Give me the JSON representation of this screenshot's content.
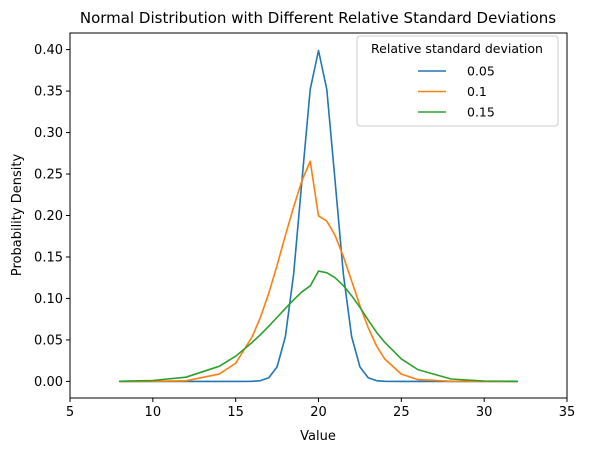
{
  "chart_data": {
    "type": "line",
    "title": "Normal Distribution with Different Relative Standard Deviations",
    "xlabel": "Value",
    "ylabel": "Probability Density",
    "xlim": [
      5,
      35
    ],
    "ylim": [
      -0.02,
      0.42
    ],
    "xticks": [
      "5",
      "10",
      "15",
      "20",
      "25",
      "30",
      "35"
    ],
    "yticks": [
      "0.00",
      "0.05",
      "0.10",
      "0.15",
      "0.20",
      "0.25",
      "0.30",
      "0.35",
      "0.40"
    ],
    "grid": false,
    "legend": {
      "title": "Relative standard deviation",
      "placement": "top-right"
    },
    "x": [
      8,
      10,
      12,
      14,
      15,
      16,
      16.5,
      17,
      17.5,
      18,
      18.5,
      19,
      19.5,
      20,
      20.5,
      21,
      21.5,
      22,
      22.5,
      23,
      23.5,
      24,
      25,
      26,
      28,
      30,
      32
    ],
    "series": [
      {
        "name": "0.05",
        "color": "#1f77b4",
        "values": [
          0,
          0,
          0,
          0,
          0,
          0.0001,
          0.0009,
          0.0044,
          0.0175,
          0.054,
          0.1295,
          0.242,
          0.3521,
          0.3989,
          0.3521,
          0.242,
          0.1295,
          0.054,
          0.0175,
          0.0044,
          0.0009,
          0.0001,
          0,
          0,
          0,
          0,
          0
        ]
      },
      {
        "name": "0.1",
        "color": "#ff7f0e",
        "values": [
          0,
          0.0001,
          0.0007,
          0.0089,
          0.0219,
          0.054,
          0.0775,
          0.1065,
          0.1399,
          0.176,
          0.2104,
          0.242,
          0.2654,
          0.1995,
          0.1933,
          0.176,
          0.1506,
          0.121,
          0.0913,
          0.0648,
          0.043,
          0.027,
          0.0088,
          0.0022,
          0.0001,
          0,
          0
        ]
      },
      {
        "name": "0.15",
        "color": "#2ca02c",
        "values": [
          0.0002,
          0.0011,
          0.0051,
          0.0182,
          0.0304,
          0.0471,
          0.0564,
          0.0666,
          0.0772,
          0.088,
          0.0983,
          0.108,
          0.1151,
          0.133,
          0.131,
          0.125,
          0.1155,
          0.1033,
          0.0893,
          0.074,
          0.0593,
          0.0471,
          0.0271,
          0.0142,
          0.0029,
          0.0005,
          0.0001
        ]
      }
    ]
  }
}
